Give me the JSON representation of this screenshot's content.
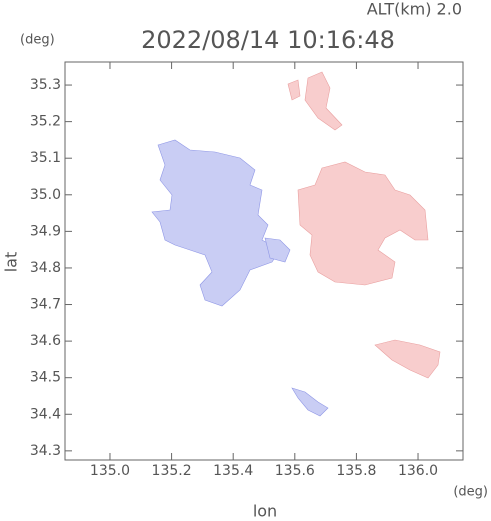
{
  "chart_data": {
    "type": "map",
    "altitude_label": "ALT(km) 2.0",
    "title": "2022/08/14 10:16:48",
    "y_unit": "(deg)",
    "x_unit": "(deg)",
    "ylabel": "lat",
    "xlabel": "lon",
    "xlim": [
      134.854,
      136.146
    ],
    "xticks": [
      {
        "value": 135,
        "label": "135.0"
      },
      135.2,
      135.4,
      135.6,
      135.8,
      {
        "value": 136,
        "label": "136.0"
      }
    ],
    "ylim": [
      34.275,
      35.363
    ],
    "yticks": [
      34.3,
      34.4,
      34.5,
      34.6,
      34.7,
      34.8,
      34.9,
      {
        "value": 35,
        "label": "35.0"
      },
      35.1,
      35.2,
      35.3
    ]
  }
}
